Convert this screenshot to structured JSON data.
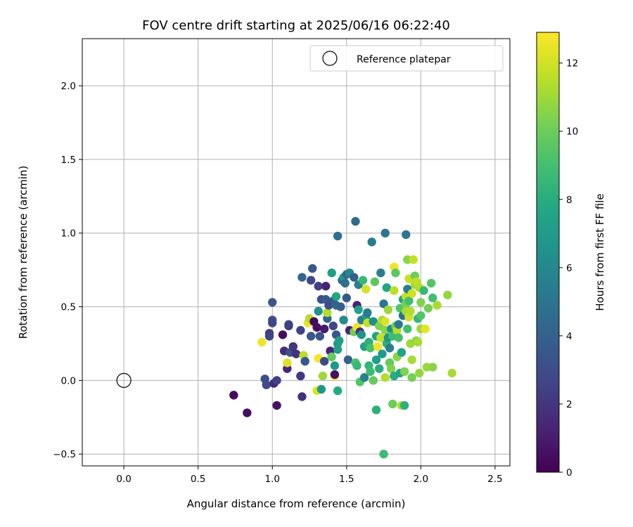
{
  "chart_data": {
    "type": "scatter",
    "title": "FOV centre drift starting at 2025/06/16 06:22:40",
    "xlabel": "Angular distance from reference (arcmin)",
    "ylabel": "Rotation from reference (arcmin)",
    "xlim": [
      -0.28,
      2.6
    ],
    "ylim": [
      -0.58,
      2.32
    ],
    "x_ticks": [
      0.0,
      0.5,
      1.0,
      1.5,
      2.0,
      2.5
    ],
    "x_tick_labels": [
      "0.0",
      "0.5",
      "1.0",
      "1.5",
      "2.0",
      "2.5"
    ],
    "y_ticks": [
      -0.5,
      0.0,
      0.5,
      1.0,
      1.5,
      2.0
    ],
    "y_tick_labels": [
      "−0.5",
      "0.0",
      "0.5",
      "1.0",
      "1.5",
      "2.0"
    ],
    "grid": true,
    "legend": {
      "position": "top-right",
      "entries": [
        "Reference platepar"
      ]
    },
    "reference_point": {
      "x": 0.0,
      "y": 0.0,
      "label": "Reference platepar"
    },
    "colorbar": {
      "label": "Hours from first FF file",
      "colormap": "viridis",
      "range": [
        0,
        12.9
      ],
      "ticks": [
        0,
        2,
        4,
        6,
        8,
        10,
        12
      ],
      "tick_labels": [
        "0",
        "2",
        "4",
        "6",
        "8",
        "10",
        "12"
      ]
    },
    "points": [
      {
        "x": 0.74,
        "y": -0.1,
        "c": 0.3
      },
      {
        "x": 0.83,
        "y": -0.22,
        "c": 0.4
      },
      {
        "x": 0.93,
        "y": 0.26,
        "c": 12.6
      },
      {
        "x": 0.95,
        "y": 0.01,
        "c": 3.0
      },
      {
        "x": 0.96,
        "y": -0.03,
        "c": 2.9
      },
      {
        "x": 0.98,
        "y": 0.32,
        "c": 2.2
      },
      {
        "x": 0.98,
        "y": 0.3,
        "c": 2.6
      },
      {
        "x": 1.0,
        "y": 0.53,
        "c": 3.5
      },
      {
        "x": 1.0,
        "y": 0.41,
        "c": 3.1
      },
      {
        "x": 1.0,
        "y": 0.39,
        "c": 2.7
      },
      {
        "x": 1.01,
        "y": -0.02,
        "c": 1.5
      },
      {
        "x": 1.03,
        "y": 0.0,
        "c": 2.4
      },
      {
        "x": 1.03,
        "y": -0.17,
        "c": 0.6
      },
      {
        "x": 1.07,
        "y": 0.31,
        "c": 0.4
      },
      {
        "x": 1.08,
        "y": 0.2,
        "c": 1.6
      },
      {
        "x": 1.1,
        "y": 0.08,
        "c": 1.4
      },
      {
        "x": 1.1,
        "y": 0.12,
        "c": 12.3
      },
      {
        "x": 1.11,
        "y": 0.38,
        "c": 3.0
      },
      {
        "x": 1.11,
        "y": 0.37,
        "c": 2.4
      },
      {
        "x": 1.12,
        "y": 0.19,
        "c": 3.2
      },
      {
        "x": 1.14,
        "y": 0.23,
        "c": 2.0
      },
      {
        "x": 1.16,
        "y": 0.18,
        "c": 1.8
      },
      {
        "x": 1.19,
        "y": 0.34,
        "c": 2.5
      },
      {
        "x": 1.19,
        "y": 0.03,
        "c": 2.1
      },
      {
        "x": 1.2,
        "y": 0.7,
        "c": 4.3
      },
      {
        "x": 1.2,
        "y": -0.11,
        "c": 1.8
      },
      {
        "x": 1.21,
        "y": 0.17,
        "c": 11.6
      },
      {
        "x": 1.22,
        "y": 0.13,
        "c": 3.5
      },
      {
        "x": 1.24,
        "y": 0.39,
        "c": 12.5
      },
      {
        "x": 1.25,
        "y": 0.42,
        "c": 11.5
      },
      {
        "x": 1.26,
        "y": 0.68,
        "c": 2.8
      },
      {
        "x": 1.26,
        "y": 0.3,
        "c": 3.5
      },
      {
        "x": 1.27,
        "y": 0.76,
        "c": 3.6
      },
      {
        "x": 1.28,
        "y": 0.4,
        "c": 0.4
      },
      {
        "x": 1.3,
        "y": -0.07,
        "c": 12.2
      },
      {
        "x": 1.3,
        "y": 0.36,
        "c": 0.5
      },
      {
        "x": 1.31,
        "y": 0.64,
        "c": 2.4
      },
      {
        "x": 1.31,
        "y": 0.47,
        "c": 6.6
      },
      {
        "x": 1.31,
        "y": 0.15,
        "c": 12.8
      },
      {
        "x": 1.32,
        "y": 0.3,
        "c": 3.3
      },
      {
        "x": 1.33,
        "y": 0.55,
        "c": 3.0
      },
      {
        "x": 1.33,
        "y": -0.06,
        "c": 6.8
      },
      {
        "x": 1.34,
        "y": 0.03,
        "c": 11.0
      },
      {
        "x": 1.35,
        "y": 0.13,
        "c": 3.0
      },
      {
        "x": 1.35,
        "y": 0.35,
        "c": 1.0
      },
      {
        "x": 1.36,
        "y": 0.64,
        "c": 1.2
      },
      {
        "x": 1.36,
        "y": 0.55,
        "c": 3.7
      },
      {
        "x": 1.37,
        "y": 0.42,
        "c": 4.3
      },
      {
        "x": 1.37,
        "y": 0.46,
        "c": 11.4
      },
      {
        "x": 1.38,
        "y": 0.51,
        "c": 3.0
      },
      {
        "x": 1.39,
        "y": 0.2,
        "c": 1.3
      },
      {
        "x": 1.4,
        "y": 0.73,
        "c": 7.2
      },
      {
        "x": 1.4,
        "y": 0.16,
        "c": 9.8
      },
      {
        "x": 1.41,
        "y": 0.54,
        "c": 3.6
      },
      {
        "x": 1.41,
        "y": 0.37,
        "c": 2.8
      },
      {
        "x": 1.42,
        "y": 0.03,
        "c": 12.7
      },
      {
        "x": 1.42,
        "y": 0.04,
        "c": 0.6
      },
      {
        "x": 1.42,
        "y": 0.1,
        "c": 7.0
      },
      {
        "x": 1.43,
        "y": 0.57,
        "c": 7.6
      },
      {
        "x": 1.43,
        "y": 0.51,
        "c": 4.3
      },
      {
        "x": 1.43,
        "y": 0.31,
        "c": 3.5
      },
      {
        "x": 1.44,
        "y": 0.98,
        "c": 4.7
      },
      {
        "x": 1.44,
        "y": -0.07,
        "c": 7.8
      },
      {
        "x": 1.44,
        "y": 0.25,
        "c": 6.8
      },
      {
        "x": 1.44,
        "y": 0.21,
        "c": 7.2
      },
      {
        "x": 1.45,
        "y": 0.27,
        "c": 7.3
      },
      {
        "x": 1.46,
        "y": 0.5,
        "c": 3.8
      },
      {
        "x": 1.47,
        "y": 0.68,
        "c": 4.3
      },
      {
        "x": 1.48,
        "y": 0.41,
        "c": 6.2
      },
      {
        "x": 1.48,
        "y": 0.7,
        "c": 7.0
      },
      {
        "x": 1.49,
        "y": 0.66,
        "c": 4.7
      },
      {
        "x": 1.5,
        "y": 0.72,
        "c": 4.2
      },
      {
        "x": 1.5,
        "y": 0.56,
        "c": 3.5
      },
      {
        "x": 1.51,
        "y": 0.14,
        "c": 4.0
      },
      {
        "x": 1.52,
        "y": 0.73,
        "c": 6.0
      },
      {
        "x": 1.52,
        "y": 0.34,
        "c": 1.2
      },
      {
        "x": 1.55,
        "y": 0.7,
        "c": 3.8
      },
      {
        "x": 1.55,
        "y": 0.33,
        "c": 10.0
      },
      {
        "x": 1.56,
        "y": 1.08,
        "c": 4.5
      },
      {
        "x": 1.56,
        "y": 0.12,
        "c": 9.2
      },
      {
        "x": 1.57,
        "y": 0.51,
        "c": 1.2
      },
      {
        "x": 1.57,
        "y": 0.36,
        "c": 12.6
      },
      {
        "x": 1.57,
        "y": 0.1,
        "c": 8.6
      },
      {
        "x": 1.58,
        "y": 0.65,
        "c": 5.6
      },
      {
        "x": 1.58,
        "y": 0.48,
        "c": 7.4
      },
      {
        "x": 1.59,
        "y": -0.01,
        "c": 9.4
      },
      {
        "x": 1.59,
        "y": 0.33,
        "c": 1.7
      },
      {
        "x": 1.6,
        "y": 0.41,
        "c": 5.6
      },
      {
        "x": 1.6,
        "y": 0.31,
        "c": 6.6
      },
      {
        "x": 1.61,
        "y": 0.68,
        "c": 8.6
      },
      {
        "x": 1.62,
        "y": 0.23,
        "c": 7.4
      },
      {
        "x": 1.62,
        "y": 0.02,
        "c": 5.6
      },
      {
        "x": 1.63,
        "y": 0.62,
        "c": 12.1
      },
      {
        "x": 1.63,
        "y": 0.43,
        "c": 6.8
      },
      {
        "x": 1.64,
        "y": 0.39,
        "c": 11.8
      },
      {
        "x": 1.64,
        "y": 0.46,
        "c": 5.3
      },
      {
        "x": 1.65,
        "y": 0.26,
        "c": 8.2
      },
      {
        "x": 1.65,
        "y": 0.1,
        "c": 8.4
      },
      {
        "x": 1.66,
        "y": 0.06,
        "c": 8.8
      },
      {
        "x": 1.66,
        "y": 0.22,
        "c": 9.2
      },
      {
        "x": 1.67,
        "y": 0.94,
        "c": 5.4
      },
      {
        "x": 1.68,
        "y": 0.0,
        "c": 9.8
      },
      {
        "x": 1.68,
        "y": 0.4,
        "c": 6.4
      },
      {
        "x": 1.69,
        "y": 0.67,
        "c": 9.6
      },
      {
        "x": 1.7,
        "y": 0.3,
        "c": 7.6
      },
      {
        "x": 1.7,
        "y": 0.14,
        "c": 7.2
      },
      {
        "x": 1.7,
        "y": -0.2,
        "c": 8.2
      },
      {
        "x": 1.71,
        "y": 0.23,
        "c": 12.6
      },
      {
        "x": 1.72,
        "y": 0.08,
        "c": 8.0
      },
      {
        "x": 1.72,
        "y": 0.37,
        "c": 10.4
      },
      {
        "x": 1.73,
        "y": 0.73,
        "c": 5.4
      },
      {
        "x": 1.73,
        "y": 0.29,
        "c": 11.8
      },
      {
        "x": 1.74,
        "y": 0.41,
        "c": 11.2
      },
      {
        "x": 1.74,
        "y": 0.18,
        "c": 7.0
      },
      {
        "x": 1.75,
        "y": -0.5,
        "c": 8.8
      },
      {
        "x": 1.75,
        "y": 0.52,
        "c": 5.0
      },
      {
        "x": 1.76,
        "y": 1.0,
        "c": 5.0
      },
      {
        "x": 1.76,
        "y": 0.4,
        "c": 12.2
      },
      {
        "x": 1.76,
        "y": 0.34,
        "c": 10.6
      },
      {
        "x": 1.76,
        "y": 0.02,
        "c": 11.4
      },
      {
        "x": 1.77,
        "y": 0.63,
        "c": 7.6
      },
      {
        "x": 1.77,
        "y": 0.25,
        "c": 8.2
      },
      {
        "x": 1.78,
        "y": 0.48,
        "c": 11.0
      },
      {
        "x": 1.78,
        "y": 0.29,
        "c": 6.6
      },
      {
        "x": 1.79,
        "y": 0.22,
        "c": 5.4
      },
      {
        "x": 1.79,
        "y": 0.12,
        "c": 9.8
      },
      {
        "x": 1.8,
        "y": 0.08,
        "c": 10.4
      },
      {
        "x": 1.8,
        "y": 0.35,
        "c": 6.4
      },
      {
        "x": 1.81,
        "y": -0.16,
        "c": 10.0
      },
      {
        "x": 1.81,
        "y": 0.3,
        "c": 8.8
      },
      {
        "x": 1.82,
        "y": 0.61,
        "c": 11.6
      },
      {
        "x": 1.82,
        "y": 0.77,
        "c": 12.6
      },
      {
        "x": 1.82,
        "y": 0.03,
        "c": 8.0
      },
      {
        "x": 1.83,
        "y": 0.73,
        "c": 9.6
      },
      {
        "x": 1.83,
        "y": 0.37,
        "c": 10.2
      },
      {
        "x": 1.84,
        "y": 0.34,
        "c": 11.6
      },
      {
        "x": 1.84,
        "y": 0.16,
        "c": 10.6
      },
      {
        "x": 1.85,
        "y": 0.38,
        "c": 5.2
      },
      {
        "x": 1.85,
        "y": 0.29,
        "c": 9.0
      },
      {
        "x": 1.86,
        "y": 0.49,
        "c": 9.4
      },
      {
        "x": 1.86,
        "y": 0.05,
        "c": 7.4
      },
      {
        "x": 1.87,
        "y": 0.19,
        "c": 7.4
      },
      {
        "x": 1.87,
        "y": -0.17,
        "c": 11.4
      },
      {
        "x": 1.88,
        "y": 0.55,
        "c": 7.6
      },
      {
        "x": 1.88,
        "y": 0.44,
        "c": 5.0
      },
      {
        "x": 1.89,
        "y": 0.06,
        "c": 10.4
      },
      {
        "x": 1.89,
        "y": -0.17,
        "c": 8.2
      },
      {
        "x": 1.9,
        "y": 0.99,
        "c": 5.0
      },
      {
        "x": 1.9,
        "y": 0.57,
        "c": 11.8
      },
      {
        "x": 1.9,
        "y": 0.52,
        "c": 10.2
      },
      {
        "x": 1.9,
        "y": 0.47,
        "c": 11.2
      },
      {
        "x": 1.91,
        "y": 0.35,
        "c": 9.0
      },
      {
        "x": 1.91,
        "y": 0.82,
        "c": 10.6
      },
      {
        "x": 1.91,
        "y": 0.62,
        "c": 5.4
      },
      {
        "x": 1.92,
        "y": 0.69,
        "c": 11.8
      },
      {
        "x": 1.92,
        "y": 0.43,
        "c": 12.0
      },
      {
        "x": 1.92,
        "y": 0.54,
        "c": 9.0
      },
      {
        "x": 1.93,
        "y": 0.25,
        "c": 11.0
      },
      {
        "x": 1.93,
        "y": 0.47,
        "c": 11.4
      },
      {
        "x": 1.94,
        "y": 0.14,
        "c": 11.2
      },
      {
        "x": 1.94,
        "y": 0.59,
        "c": 12.0
      },
      {
        "x": 1.94,
        "y": 0.02,
        "c": 10.2
      },
      {
        "x": 1.95,
        "y": 0.82,
        "c": 11.8
      },
      {
        "x": 1.96,
        "y": 0.65,
        "c": 11.0
      },
      {
        "x": 1.96,
        "y": 0.71,
        "c": 10.0
      },
      {
        "x": 1.97,
        "y": 0.67,
        "c": 11.6
      },
      {
        "x": 1.97,
        "y": 0.27,
        "c": 10.6
      },
      {
        "x": 1.98,
        "y": 0.42,
        "c": 8.4
      },
      {
        "x": 1.98,
        "y": 0.26,
        "c": 11.2
      },
      {
        "x": 1.99,
        "y": 0.63,
        "c": 11.4
      },
      {
        "x": 1.99,
        "y": 0.05,
        "c": 10.8
      },
      {
        "x": 2.0,
        "y": 0.44,
        "c": 9.4
      },
      {
        "x": 2.0,
        "y": 0.53,
        "c": 10.4
      },
      {
        "x": 2.0,
        "y": 0.35,
        "c": 11.0
      },
      {
        "x": 2.02,
        "y": 0.61,
        "c": 8.6
      },
      {
        "x": 2.03,
        "y": 0.35,
        "c": 12.4
      },
      {
        "x": 2.04,
        "y": 0.09,
        "c": 11.0
      },
      {
        "x": 2.05,
        "y": 0.49,
        "c": 10.2
      },
      {
        "x": 2.07,
        "y": 0.66,
        "c": 9.4
      },
      {
        "x": 2.08,
        "y": 0.56,
        "c": 9.0
      },
      {
        "x": 2.08,
        "y": 0.09,
        "c": 10.6
      },
      {
        "x": 2.11,
        "y": 0.51,
        "c": 11.2
      },
      {
        "x": 2.18,
        "y": 0.58,
        "c": 10.8
      },
      {
        "x": 2.21,
        "y": 0.05,
        "c": 11.2
      }
    ]
  }
}
